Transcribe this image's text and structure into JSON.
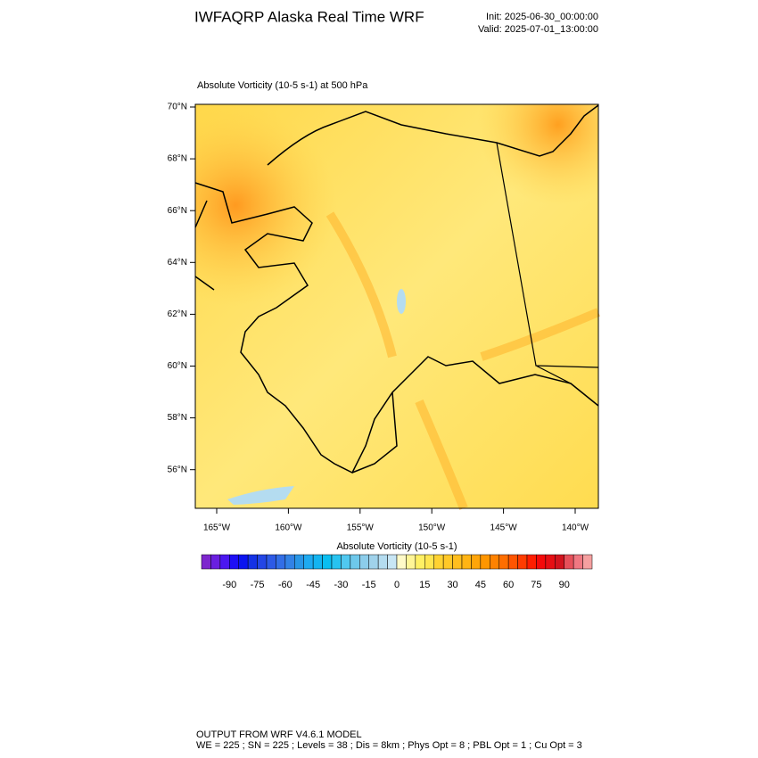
{
  "header": {
    "title": "IWFAQRP Alaska Real Time WRF",
    "init": "Init: 2025-06-30_00:00:00",
    "valid": "Valid: 2025-07-01_13:00:00"
  },
  "plot": {
    "subtitle": "Absolute Vorticity   (10-5 s-1)     at   500 hPa",
    "lat_labels": [
      "70°N",
      "68°N",
      "66°N",
      "64°N",
      "62°N",
      "60°N",
      "58°N",
      "56°N"
    ],
    "lon_labels": [
      "165°W",
      "160°W",
      "155°W",
      "150°W",
      "145°W",
      "140°W"
    ]
  },
  "colorbar": {
    "title": "Absolute Vorticity  (10-5 s-1)",
    "range": [
      -105,
      105
    ],
    "labels": [
      -90,
      -75,
      -60,
      -45,
      -30,
      -15,
      0,
      15,
      30,
      45,
      60,
      75,
      90
    ],
    "colors": [
      "#7d26cd",
      "#6a1fe0",
      "#4b17f0",
      "#1e0ff5",
      "#0a14f0",
      "#1432e6",
      "#2346e6",
      "#2d5ae6",
      "#326ee6",
      "#3282e6",
      "#2896e6",
      "#1eaaf0",
      "#14b4f0",
      "#0abef0",
      "#28c3f0",
      "#50c8f0",
      "#6ec8eb",
      "#8ccdeb",
      "#a0d2eb",
      "#b4dcf0",
      "#c8e6f5",
      "#fffac8",
      "#fff596",
      "#fff064",
      "#ffe650",
      "#ffd232",
      "#ffc828",
      "#ffbe1e",
      "#ffb414",
      "#ffa50a",
      "#ff9600",
      "#ff8200",
      "#ff6e00",
      "#ff5500",
      "#ff3c00",
      "#ff1e00",
      "#f50a0a",
      "#e60f14",
      "#d2141e",
      "#e6505a",
      "#f07882",
      "#f5a0a0"
    ]
  },
  "footer": {
    "line1": "OUTPUT FROM WRF V4.6.1 MODEL",
    "line2": "WE = 225 ; SN = 225 ; Levels = 38 ; Dis = 8km ; Phys Opt = 8 ; PBL Opt = 1 ; Cu Opt = 3"
  }
}
